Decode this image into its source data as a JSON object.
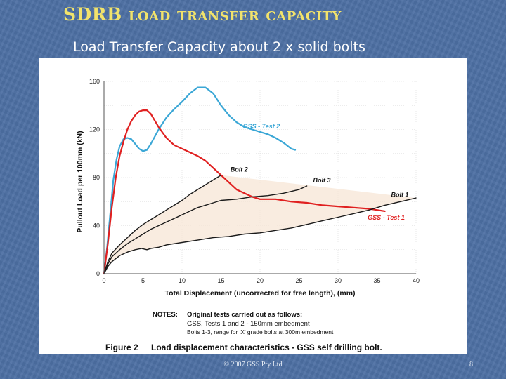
{
  "slide": {
    "title": "SDRB load transfer capacity",
    "subtitle": "Load Transfer Capacity about 2 x solid bolts",
    "footer": "© 2007 GSS Pty Ltd",
    "page_number": "8"
  },
  "figure": {
    "notes_header": "NOTES:",
    "notes_lines": [
      "Original tests carried out as follows:",
      "GSS, Tests 1 and 2 - 150mm embedment",
      "Bolts 1-3, range for 'X' grade bolts at 300m embedment"
    ],
    "caption_number": "Figure 2",
    "caption_text": "Load displacement characteristics - GSS self drilling bolt."
  },
  "colors": {
    "background": "#4c6fa3",
    "title": "#f2e36b",
    "gss_test_1": "#e02020",
    "gss_test_2": "#3ba7d6",
    "bolts": "#1a1a1a",
    "envelope_fill": "#f7e6d6"
  },
  "chart_data": {
    "type": "line",
    "xlabel": "Total Displacement (uncorrected for free length), (mm)",
    "ylabel": "Pullout Load per 100mm (kN)",
    "xlim": [
      0,
      40
    ],
    "ylim": [
      0,
      160
    ],
    "xticks": [
      0,
      5,
      10,
      15,
      20,
      25,
      30,
      35,
      40
    ],
    "yticks": [
      0,
      40,
      80,
      120,
      160
    ],
    "grid": true,
    "series": [
      {
        "name": "GSS - Test 2",
        "color": "#3ba7d6",
        "points": [
          [
            0,
            0
          ],
          [
            0.4,
            22
          ],
          [
            0.8,
            50
          ],
          [
            1.2,
            78
          ],
          [
            1.6,
            95
          ],
          [
            2,
            106
          ],
          [
            2.5,
            112
          ],
          [
            3,
            113
          ],
          [
            3.5,
            112
          ],
          [
            4,
            108
          ],
          [
            4.5,
            104
          ],
          [
            5,
            102
          ],
          [
            5.5,
            103
          ],
          [
            6,
            108
          ],
          [
            7,
            120
          ],
          [
            8,
            130
          ],
          [
            9,
            137
          ],
          [
            10,
            143
          ],
          [
            11,
            150
          ],
          [
            12,
            155
          ],
          [
            13,
            155
          ],
          [
            14,
            150
          ],
          [
            15,
            140
          ],
          [
            16,
            132
          ],
          [
            17,
            126
          ],
          [
            18,
            122
          ],
          [
            19,
            120
          ],
          [
            20,
            118
          ],
          [
            21,
            116
          ],
          [
            22,
            113
          ],
          [
            23,
            109
          ],
          [
            24,
            104
          ],
          [
            24.5,
            103
          ]
        ]
      },
      {
        "name": "GSS - Test 1",
        "color": "#e02020",
        "points": [
          [
            0,
            0
          ],
          [
            0.5,
            25
          ],
          [
            1,
            55
          ],
          [
            1.5,
            80
          ],
          [
            2,
            98
          ],
          [
            2.5,
            110
          ],
          [
            3,
            120
          ],
          [
            3.5,
            127
          ],
          [
            4,
            132
          ],
          [
            4.5,
            135
          ],
          [
            5,
            136
          ],
          [
            5.5,
            136
          ],
          [
            6,
            133
          ],
          [
            7,
            122
          ],
          [
            8,
            113
          ],
          [
            9,
            107
          ],
          [
            10,
            104
          ],
          [
            11,
            101
          ],
          [
            12,
            98
          ],
          [
            13,
            94
          ],
          [
            14,
            88
          ],
          [
            15,
            82
          ],
          [
            16,
            76
          ],
          [
            17,
            70
          ],
          [
            18,
            67
          ],
          [
            19,
            64
          ],
          [
            20,
            62
          ],
          [
            22,
            62
          ],
          [
            24,
            60
          ],
          [
            26,
            59
          ],
          [
            28,
            57
          ],
          [
            30,
            56
          ],
          [
            32,
            55
          ],
          [
            34,
            54
          ],
          [
            36,
            52
          ]
        ]
      },
      {
        "name": "Bolt 2",
        "color": "#1a1a1a",
        "points": [
          [
            0,
            0
          ],
          [
            0.5,
            10
          ],
          [
            1,
            17
          ],
          [
            2,
            24
          ],
          [
            3,
            30
          ],
          [
            4,
            36
          ],
          [
            5,
            41
          ],
          [
            6,
            45
          ],
          [
            7,
            49
          ],
          [
            8,
            53
          ],
          [
            9,
            57
          ],
          [
            10,
            61
          ],
          [
            11,
            66
          ],
          [
            12,
            70
          ],
          [
            13,
            74
          ],
          [
            14,
            78
          ],
          [
            15,
            82
          ]
        ]
      },
      {
        "name": "Bolt 3",
        "color": "#1a1a1a",
        "points": [
          [
            0,
            0
          ],
          [
            0.5,
            8
          ],
          [
            1,
            14
          ],
          [
            2,
            20
          ],
          [
            3,
            25
          ],
          [
            4,
            29
          ],
          [
            5,
            33
          ],
          [
            6,
            37
          ],
          [
            7,
            40
          ],
          [
            8,
            43
          ],
          [
            9,
            46
          ],
          [
            10,
            49
          ],
          [
            11,
            52
          ],
          [
            12,
            55
          ],
          [
            13,
            57
          ],
          [
            14,
            59
          ],
          [
            15,
            61
          ],
          [
            17,
            62
          ],
          [
            19,
            64
          ],
          [
            21,
            65
          ],
          [
            23,
            67
          ],
          [
            25,
            70
          ],
          [
            26,
            73
          ]
        ]
      },
      {
        "name": "Bolt 1",
        "color": "#1a1a1a",
        "points": [
          [
            0,
            0
          ],
          [
            0.5,
            6
          ],
          [
            1,
            10
          ],
          [
            2,
            15
          ],
          [
            3,
            18
          ],
          [
            4,
            20
          ],
          [
            4.8,
            21
          ],
          [
            5.5,
            20
          ],
          [
            6,
            21
          ],
          [
            7,
            22
          ],
          [
            8,
            24
          ],
          [
            10,
            26
          ],
          [
            12,
            28
          ],
          [
            14,
            30
          ],
          [
            16,
            31
          ],
          [
            18,
            33
          ],
          [
            20,
            34
          ],
          [
            22,
            36
          ],
          [
            24,
            38
          ],
          [
            26,
            41
          ],
          [
            28,
            44
          ],
          [
            30,
            47
          ],
          [
            32,
            50
          ],
          [
            34,
            53
          ],
          [
            36,
            57
          ],
          [
            38,
            60
          ],
          [
            40,
            63
          ]
        ]
      }
    ],
    "annotations": [
      {
        "text": "GSS - Test 2",
        "x": 17.8,
        "y": 121
      },
      {
        "text": "GSS - Test 1",
        "x": 33.8,
        "y": 45
      },
      {
        "text": "Bolt 2",
        "x": 16.2,
        "y": 85
      },
      {
        "text": "Bolt 3",
        "x": 26.8,
        "y": 76
      },
      {
        "text": "Bolt 1",
        "x": 36.8,
        "y": 64
      }
    ]
  }
}
